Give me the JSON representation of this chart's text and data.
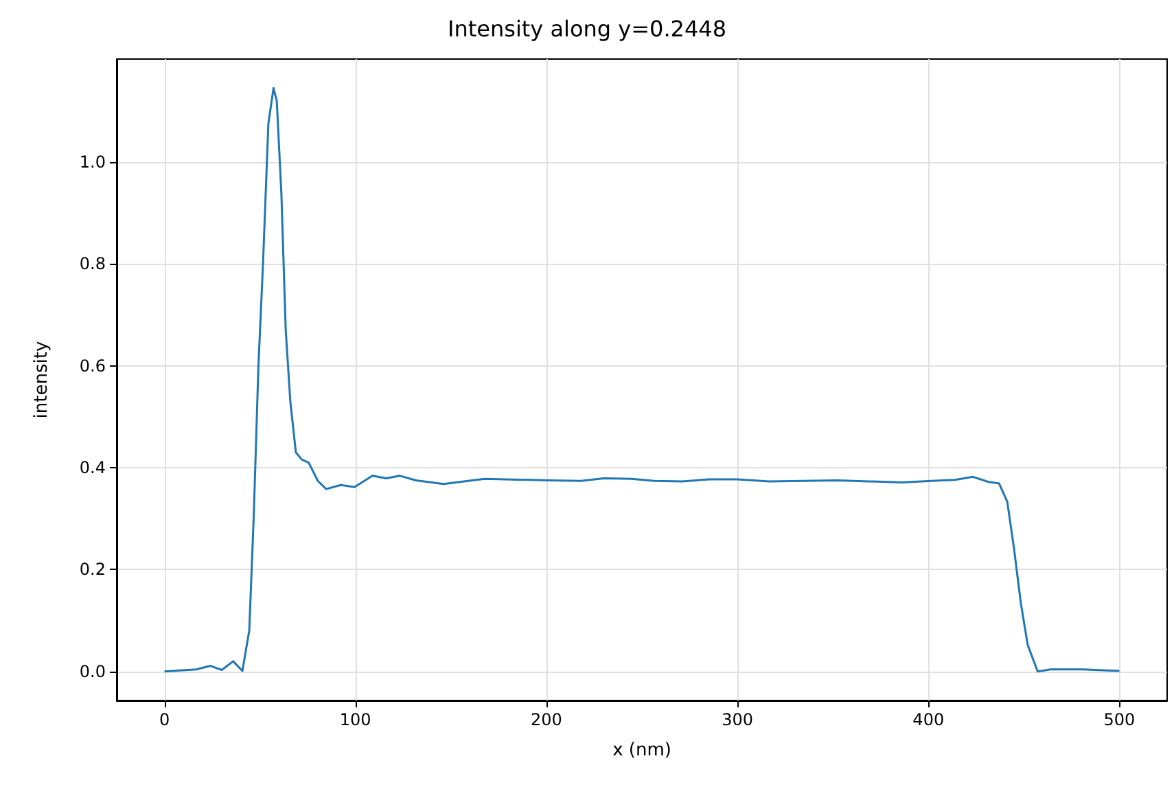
{
  "chart_data": {
    "type": "line",
    "title": "Intensity along y=0.2448",
    "xlabel": "x (nm)",
    "ylabel": "intensity",
    "xlim": [
      -25,
      525
    ],
    "ylim": [
      -0.057,
      1.202
    ],
    "xticks": [
      0,
      100,
      200,
      300,
      400,
      500
    ],
    "yticks": [
      {
        "value": 0,
        "label": "0.0"
      },
      0.2,
      0.4,
      0.6,
      0.8,
      {
        "value": 1,
        "label": "1.0"
      }
    ],
    "grid": true,
    "marker": "none",
    "line_style": "solid",
    "series": [
      {
        "color": "#1f77b4",
        "x": [
          0,
          16.8,
          24,
          30,
          36,
          40.8,
          44.4,
          46.8,
          49.2,
          51.6,
          54.4,
          57.1,
          58.8,
          61.2,
          63.5,
          65.9,
          68.8,
          71.9,
          75.5,
          80.3,
          84.7,
          92.3,
          99.5,
          108.9,
          116.1,
          123.3,
          131.7,
          146.1,
          167.7,
          201.3,
          218.1,
          230.1,
          244.5,
          256.5,
          270.9,
          285.3,
          299.7,
          316.5,
          352.5,
          386.1,
          401.7,
          413.9,
          423.3,
          431.5,
          437,
          441.3,
          444.8,
          448.4,
          452,
          457.2,
          464,
          480.8,
          500
        ],
        "values": [
          0,
          0.004,
          0.011,
          0.003,
          0.02,
          0.001,
          0.08,
          0.31,
          0.6,
          0.8,
          1.075,
          1.145,
          1.12,
          0.94,
          0.67,
          0.53,
          0.43,
          0.416,
          0.41,
          0.374,
          0.358,
          0.366,
          0.362,
          0.384,
          0.379,
          0.384,
          0.375,
          0.368,
          0.378,
          0.375,
          0.374,
          0.379,
          0.378,
          0.374,
          0.373,
          0.377,
          0.377,
          0.373,
          0.375,
          0.371,
          0.374,
          0.376,
          0.382,
          0.372,
          0.369,
          0.333,
          0.242,
          0.134,
          0.052,
          0,
          0.004,
          0.004,
          0.001
        ]
      }
    ]
  }
}
